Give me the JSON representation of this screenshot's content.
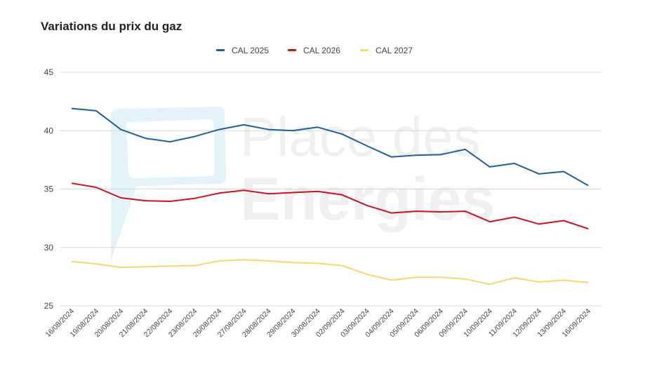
{
  "chart_data": {
    "type": "line",
    "title": "Variations du prix du gaz",
    "xlabel": "",
    "ylabel": "",
    "ylim": [
      25,
      45
    ],
    "yticks": [
      25,
      30,
      35,
      40,
      45
    ],
    "grid": true,
    "legend_position": "top",
    "watermark": "Place des Energies",
    "categories": [
      "16/08/2024",
      "19/08/2024",
      "20/08/2024",
      "21/08/2024",
      "22/08/2024",
      "23/08/2024",
      "26/08/2024",
      "27/08/2024",
      "28/08/2024",
      "29/08/2024",
      "30/08/2024",
      "02/09/2024",
      "03/09/2024",
      "04/09/2024",
      "05/09/2024",
      "06/09/2024",
      "09/09/2024",
      "10/09/2024",
      "11/09/2024",
      "12/09/2024",
      "13/09/2024",
      "16/09/2024"
    ],
    "series": [
      {
        "name": "CAL 2025",
        "color": "#1f5fa0",
        "values": [
          41.9,
          41.7,
          40.1,
          39.35,
          39.05,
          39.5,
          40.1,
          40.5,
          40.1,
          40.0,
          40.3,
          39.7,
          38.7,
          37.75,
          37.9,
          37.95,
          38.4,
          36.9,
          37.2,
          36.3,
          36.5,
          35.3
        ]
      },
      {
        "name": "CAL 2026",
        "color": "#d0111b",
        "values": [
          35.5,
          35.15,
          34.25,
          34.0,
          33.95,
          34.2,
          34.65,
          34.9,
          34.6,
          34.7,
          34.8,
          34.5,
          33.6,
          32.95,
          33.1,
          33.05,
          33.1,
          32.2,
          32.6,
          32.0,
          32.3,
          31.6
        ]
      },
      {
        "name": "CAL 2027",
        "color": "#fdd66b",
        "values": [
          28.8,
          28.6,
          28.3,
          28.35,
          28.4,
          28.45,
          28.85,
          28.95,
          28.85,
          28.7,
          28.65,
          28.45,
          27.7,
          27.2,
          27.45,
          27.45,
          27.3,
          26.85,
          27.4,
          27.05,
          27.2,
          27.0
        ]
      }
    ]
  }
}
